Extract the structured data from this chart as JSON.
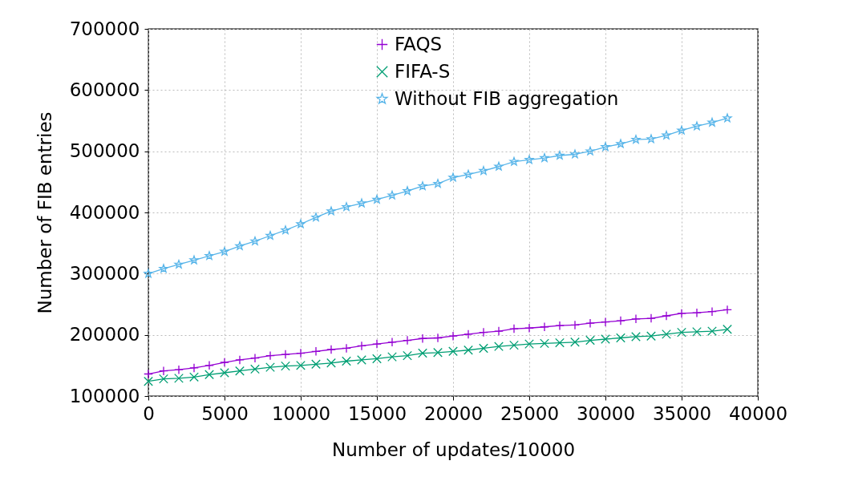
{
  "chart_data": {
    "type": "line",
    "xlabel": "Number of updates/10000",
    "ylabel": "Number of FIB entries",
    "x": [
      0,
      1000,
      2000,
      3000,
      4000,
      5000,
      6000,
      7000,
      8000,
      9000,
      10000,
      11000,
      12000,
      13000,
      14000,
      15000,
      16000,
      17000,
      18000,
      19000,
      20000,
      21000,
      22000,
      23000,
      24000,
      25000,
      26000,
      27000,
      28000,
      29000,
      30000,
      31000,
      32000,
      33000,
      34000,
      35000,
      36000,
      37000,
      38000
    ],
    "series": [
      {
        "name": "FAQS",
        "color": "#9400d3",
        "marker": "cross",
        "values": [
          136000,
          141000,
          143000,
          146000,
          150000,
          155000,
          159000,
          162000,
          166000,
          168000,
          170000,
          173000,
          176000,
          178000,
          182000,
          185000,
          188000,
          191000,
          194000,
          195000,
          198000,
          201000,
          204000,
          206000,
          210000,
          211000,
          213000,
          215000,
          216000,
          219000,
          221000,
          223000,
          226000,
          227000,
          231000,
          235000,
          236000,
          238000,
          241000
        ]
      },
      {
        "name": "FIFA-S",
        "color": "#009e73",
        "marker": "x",
        "values": [
          124000,
          128000,
          129000,
          131000,
          135000,
          138000,
          141000,
          144000,
          147000,
          149000,
          150000,
          152000,
          154000,
          157000,
          159000,
          161000,
          164000,
          166000,
          170000,
          171000,
          173000,
          175000,
          178000,
          181000,
          183000,
          185000,
          186000,
          187000,
          188000,
          191000,
          193000,
          195000,
          197000,
          198000,
          201000,
          204000,
          205000,
          206000,
          209000
        ]
      },
      {
        "name": "Without FIB aggregation",
        "color": "#56b4e9",
        "marker": "star",
        "values": [
          300000,
          308000,
          315000,
          322000,
          329000,
          336000,
          345000,
          353000,
          362000,
          371000,
          381000,
          392000,
          402000,
          409000,
          415000,
          421000,
          428000,
          435000,
          443000,
          447000,
          457000,
          462000,
          468000,
          475000,
          483000,
          486000,
          489000,
          493000,
          495000,
          500000,
          507000,
          512000,
          519000,
          520000,
          526000,
          534000,
          541000,
          547000,
          554000
        ]
      }
    ],
    "xlim": [
      0,
      40000
    ],
    "xticks": [
      0,
      5000,
      10000,
      15000,
      20000,
      25000,
      30000,
      35000,
      40000
    ],
    "ylim": [
      100000,
      700000
    ],
    "yticks": [
      100000,
      200000,
      300000,
      400000,
      500000,
      600000,
      700000
    ],
    "grid": true,
    "legend": "top",
    "line_style": "solid"
  }
}
